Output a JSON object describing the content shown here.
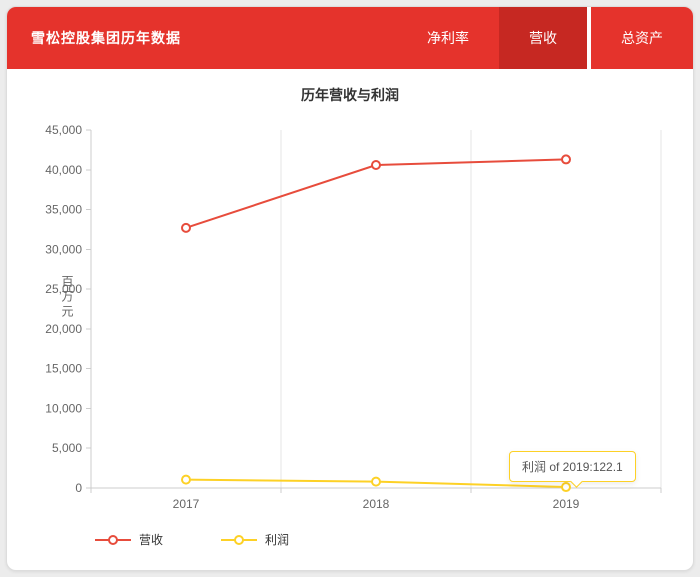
{
  "colors": {
    "header_bg": "#e5332c",
    "active_tab_bg": "#c62822",
    "revenue_line": "#e74c3c",
    "profit_line": "#fdd126",
    "axis": "#cccccc",
    "grid": "#e5e5e5",
    "tick_text": "#666666"
  },
  "header": {
    "title": "雪松控股集团历年数据",
    "tabs": [
      {
        "label": "净利率",
        "active": false
      },
      {
        "label": "营收",
        "active": true
      },
      {
        "label": "总资产",
        "active": false
      }
    ]
  },
  "chart_data": {
    "type": "line",
    "title": "历年营收与利润",
    "ylabel": "百万元",
    "xlabel": "",
    "categories": [
      "2017",
      "2018",
      "2019"
    ],
    "series": [
      {
        "name": "营收",
        "color": "#e74c3c",
        "values": [
          32700,
          40600,
          41300
        ]
      },
      {
        "name": "利润",
        "color": "#fdd126",
        "values": [
          1050,
          800,
          122.1
        ]
      }
    ],
    "ylim": [
      0,
      45000
    ],
    "ytick_step": 5000,
    "ytick_labels": [
      "0",
      "5,000",
      "10,000",
      "15,000",
      "20,000",
      "25,000",
      "30,000",
      "35,000",
      "40,000",
      "45,000"
    ],
    "grid": "vertical-split-lines",
    "legend_position": "bottom-left"
  },
  "tooltip": {
    "text": "利润 of 2019:122.1"
  }
}
